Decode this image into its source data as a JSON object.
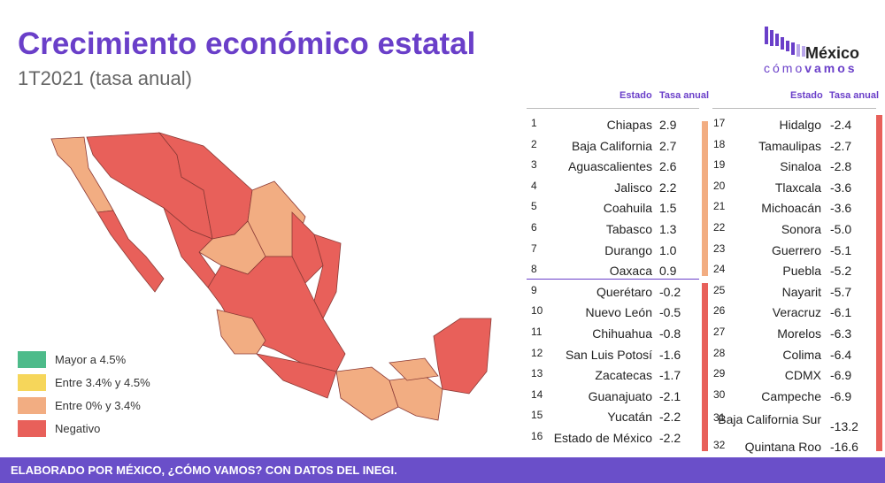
{
  "header": {
    "title": "Crecimiento económico estatal",
    "subtitle": "1T2021 (tasa anual)"
  },
  "logo": {
    "name": "México",
    "tagline_light": "cómo",
    "tagline_bold": "vamos"
  },
  "legend": [
    {
      "label": "Mayor a 4.5%",
      "color": "#4dbb8a"
    },
    {
      "label": "Entre 3.4% y 4.5%",
      "color": "#f6d65a"
    },
    {
      "label": "Entre 0% y 3.4%",
      "color": "#f2ad82"
    },
    {
      "label": "Negativo",
      "color": "#e8605a"
    }
  ],
  "tables": [
    {
      "headers": [
        "Estado",
        "Tasa anual"
      ],
      "rows": [
        [
          "1",
          "Chiapas",
          "2.9"
        ],
        [
          "2",
          "Baja California",
          "2.7"
        ],
        [
          "3",
          "Aguascalientes",
          "2.6"
        ],
        [
          "4",
          "Jalisco",
          "2.2"
        ],
        [
          "5",
          "Coahuila",
          "1.5"
        ],
        [
          "6",
          "Tabasco",
          "1.3"
        ],
        [
          "7",
          "Durango",
          "1.0"
        ],
        [
          "8",
          "Oaxaca",
          "0.9"
        ],
        [
          "9",
          "Querétaro",
          "-0.2"
        ],
        [
          "10",
          "Nuevo León",
          "-0.5"
        ],
        [
          "11",
          "Chihuahua",
          "-0.8"
        ],
        [
          "12",
          "San Luis Potosí",
          "-1.6"
        ],
        [
          "13",
          "Zacatecas",
          "-1.7"
        ],
        [
          "14",
          "Guanajuato",
          "-2.1"
        ],
        [
          "15",
          "Yucatán",
          "-2.2"
        ],
        [
          "16",
          "Estado de México",
          "-2.2"
        ]
      ]
    },
    {
      "headers": [
        "Estado",
        "Tasa anual"
      ],
      "rows": [
        [
          "17",
          "Hidalgo",
          "-2.4"
        ],
        [
          "18",
          "Tamaulipas",
          "-2.7"
        ],
        [
          "19",
          "Sinaloa",
          "-2.8"
        ],
        [
          "20",
          "Tlaxcala",
          "-3.6"
        ],
        [
          "21",
          "Michoacán",
          "-3.6"
        ],
        [
          "22",
          "Sonora",
          "-5.0"
        ],
        [
          "23",
          "Guerrero",
          "-5.1"
        ],
        [
          "24",
          "Puebla",
          "-5.2"
        ],
        [
          "25",
          "Nayarit",
          "-5.7"
        ],
        [
          "26",
          "Veracruz",
          "-6.1"
        ],
        [
          "27",
          "Morelos",
          "-6.3"
        ],
        [
          "28",
          "Colima",
          "-6.4"
        ],
        [
          "29",
          "CDMX",
          "-6.9"
        ],
        [
          "30",
          "Campeche",
          "-6.9"
        ],
        [
          "31",
          "Baja California Sur",
          "-13.2"
        ],
        [
          "32",
          "Quintana Roo",
          "-16.6"
        ]
      ]
    }
  ],
  "footer": "ELABORADO POR MÉXICO, ¿CÓMO VAMOS? CON DATOS DEL INEGI."
}
